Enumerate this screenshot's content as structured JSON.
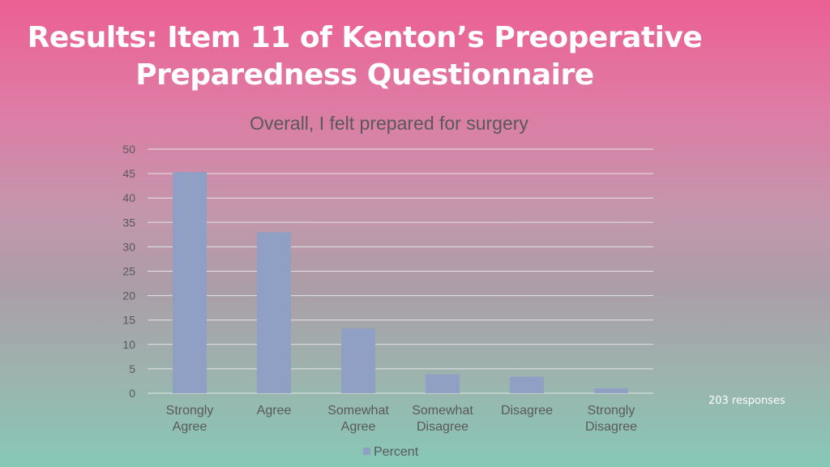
{
  "title": {
    "line1": "Results: Item 11 of Kenton’s Preoperative",
    "line2": "Preparedness Questionnaire"
  },
  "note": "203 responses",
  "colors": {
    "bar": "#8fa0c4",
    "axis_text": "#595959",
    "gridline": "#e6e6e6"
  },
  "chart_data": {
    "type": "bar",
    "title": "Overall, I felt prepared for surgery",
    "categories": [
      "Strongly Agree",
      "Agree",
      "Somewhat Agree",
      "Somewhat Disagree",
      "Disagree",
      "Strongly Disagree"
    ],
    "series": [
      {
        "name": "Percent",
        "values": [
          45.3,
          33.0,
          13.3,
          3.9,
          3.4,
          1.0
        ]
      }
    ],
    "ylim": [
      0,
      50
    ],
    "yticks": [
      0,
      5,
      10,
      15,
      20,
      25,
      30,
      35,
      40,
      45,
      50
    ],
    "grid": true,
    "legend_position": "bottom"
  }
}
